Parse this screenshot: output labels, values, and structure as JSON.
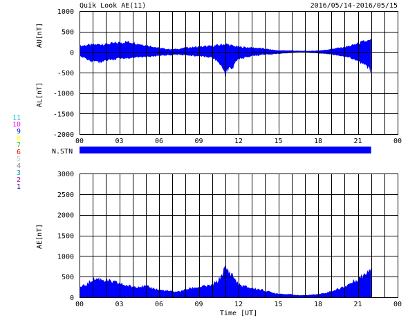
{
  "chart_data": [
    {
      "type": "area",
      "title": "Quik Look AE(11)",
      "date_range": "2016/05/14-2016/05/15",
      "ylabel_upper": "AU[nT]",
      "ylabel_lower": "AL[nT]",
      "ylim": [
        -2000,
        1000
      ],
      "yticks": [
        1000,
        500,
        0,
        -500,
        -1000,
        -1500,
        -2000
      ],
      "xlim": [
        0,
        24
      ],
      "xtick_labels": [
        "00",
        "03",
        "06",
        "09",
        "12",
        "15",
        "18",
        "21",
        "00"
      ],
      "fill_color": "#0000ff",
      "grid": true,
      "series": [
        {
          "name": "AU",
          "x": [
            0,
            0.5,
            1,
            1.5,
            2,
            2.5,
            3,
            3.5,
            4,
            4.5,
            5,
            5.5,
            6,
            6.5,
            7,
            7.5,
            8,
            8.5,
            9,
            9.5,
            10,
            10.5,
            11,
            11.5,
            12,
            12.5,
            13,
            13.5,
            14,
            14.5,
            15,
            15.5,
            16,
            16.5,
            17,
            17.5,
            18,
            18.5,
            19,
            19.5,
            20,
            20.5,
            21,
            21.5,
            22
          ],
          "values": [
            150,
            170,
            180,
            190,
            200,
            210,
            230,
            250,
            240,
            200,
            170,
            140,
            100,
            80,
            70,
            80,
            110,
            120,
            130,
            140,
            150,
            170,
            200,
            160,
            130,
            120,
            110,
            100,
            80,
            60,
            40,
            40,
            40,
            30,
            30,
            30,
            40,
            50,
            80,
            100,
            120,
            160,
            210,
            260,
            280
          ]
        },
        {
          "name": "AL",
          "x": [
            0,
            0.5,
            1,
            1.5,
            2,
            2.5,
            3,
            3.5,
            4,
            4.5,
            5,
            5.5,
            6,
            6.5,
            7,
            7.5,
            8,
            8.5,
            9,
            9.5,
            10,
            10.5,
            11,
            11.5,
            12,
            12.5,
            13,
            13.5,
            14,
            14.5,
            15,
            15.5,
            16,
            16.5,
            17,
            17.5,
            18,
            18.5,
            19,
            19.5,
            20,
            20.5,
            21,
            21.5,
            22
          ],
          "values": [
            -100,
            -170,
            -240,
            -250,
            -200,
            -180,
            -160,
            -150,
            -140,
            -130,
            -120,
            -110,
            -90,
            -80,
            -70,
            -60,
            -80,
            -90,
            -100,
            -110,
            -150,
            -220,
            -520,
            -380,
            -170,
            -130,
            -100,
            -80,
            -60,
            -50,
            -40,
            -30,
            -20,
            -10,
            -10,
            -20,
            -30,
            -40,
            -60,
            -80,
            -110,
            -150,
            -230,
            -320,
            -460
          ]
        }
      ]
    },
    {
      "type": "bar",
      "ylabel": "N.STN",
      "xlim": [
        0,
        24
      ],
      "bar_start": 0,
      "bar_end": 22,
      "fill_color": "#0000ff",
      "legend": {
        "entries": [
          "11",
          "10",
          "9",
          "8",
          "7",
          "6",
          "5",
          "4",
          "3",
          "2",
          "1"
        ],
        "colors": [
          "#00c8c8",
          "#ff00ff",
          "#0000ff",
          "#ffff00",
          "#00c800",
          "#ff0000",
          "#c8c8c8",
          "#808080",
          "#00a0a0",
          "#a000a0",
          "#0000a0"
        ]
      }
    },
    {
      "type": "area",
      "ylabel": "AE[nT]",
      "xlabel": "Time [UT]",
      "ylim": [
        0,
        3000
      ],
      "yticks": [
        3000,
        2500,
        2000,
        1500,
        1000,
        500,
        0
      ],
      "xlim": [
        0,
        24
      ],
      "xtick_labels": [
        "00",
        "03",
        "06",
        "09",
        "12",
        "15",
        "18",
        "21",
        "00"
      ],
      "fill_color": "#0000ff",
      "grid": true,
      "series": [
        {
          "name": "AE",
          "x": [
            0,
            0.5,
            1,
            1.5,
            2,
            2.5,
            3,
            3.5,
            4,
            4.5,
            5,
            5.5,
            6,
            6.5,
            7,
            7.5,
            8,
            8.5,
            9,
            9.5,
            10,
            10.5,
            11,
            11.5,
            12,
            12.5,
            13,
            13.5,
            14,
            14.5,
            15,
            15.5,
            16,
            16.5,
            17,
            17.5,
            18,
            18.5,
            19,
            19.5,
            20,
            20.5,
            21,
            21.5,
            22
          ],
          "values": [
            240,
            300,
            440,
            450,
            410,
            370,
            340,
            290,
            260,
            270,
            260,
            230,
            180,
            160,
            140,
            140,
            190,
            230,
            250,
            270,
            290,
            420,
            710,
            560,
            310,
            260,
            220,
            200,
            160,
            120,
            90,
            80,
            70,
            50,
            50,
            60,
            80,
            100,
            150,
            200,
            260,
            350,
            450,
            560,
            760
          ]
        }
      ]
    }
  ]
}
